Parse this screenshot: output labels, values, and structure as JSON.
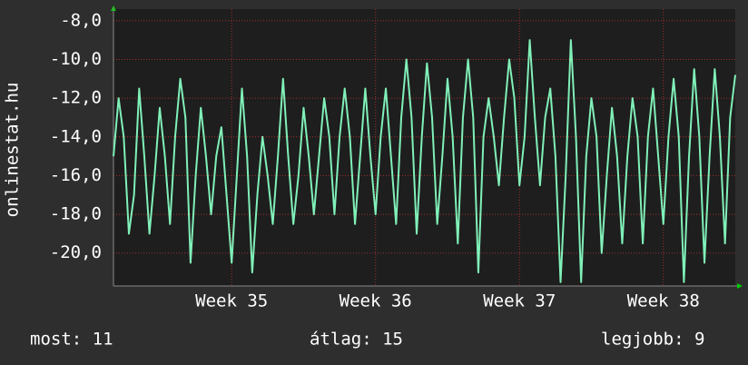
{
  "chart_data": {
    "type": "line",
    "y_label": "onlinestat.hu",
    "footer": [
      "most: 11",
      "átlag: 15",
      "legjobb: 9"
    ],
    "color": "#80f0b8",
    "grid": true,
    "ylim": [
      -21.7,
      -7.4
    ],
    "yticks": [
      {
        "value": -8,
        "label": "-8,0"
      },
      {
        "value": -10,
        "label": "-10,0"
      },
      {
        "value": -12,
        "label": "-12,0"
      },
      {
        "value": -14,
        "label": "-14,0"
      },
      {
        "value": -16,
        "label": "-16,0"
      },
      {
        "value": -18,
        "label": "-18,0"
      },
      {
        "value": -20,
        "label": "-20,0"
      }
    ],
    "xlim": [
      0,
      121
    ],
    "xticks": [
      {
        "value": 23,
        "label": "Week 35"
      },
      {
        "value": 51,
        "label": "Week 36"
      },
      {
        "value": 79,
        "label": "Week 37"
      },
      {
        "value": 107,
        "label": "Week 38"
      }
    ],
    "values": [
      -15,
      -12,
      -14,
      -19,
      -17,
      -11.5,
      -15,
      -19,
      -16,
      -12.5,
      -15,
      -18.5,
      -14,
      -11,
      -13,
      -20.5,
      -16,
      -12.5,
      -15,
      -18,
      -15,
      -13.5,
      -17,
      -20.5,
      -16,
      -11.5,
      -15,
      -21,
      -17,
      -14,
      -16,
      -18.5,
      -15,
      -11,
      -15,
      -18.5,
      -16,
      -12.5,
      -15,
      -18,
      -15,
      -12,
      -14,
      -18,
      -14,
      -11.5,
      -14,
      -18.5,
      -15,
      -11.5,
      -15,
      -18,
      -14,
      -11.5,
      -15,
      -18.5,
      -13,
      -10,
      -13,
      -19,
      -14,
      -10.2,
      -13,
      -18.5,
      -15,
      -11,
      -14,
      -19.5,
      -13,
      -10,
      -13,
      -21,
      -14,
      -12,
      -14,
      -16.5,
      -13,
      -10,
      -12,
      -16.5,
      -14,
      -9,
      -13,
      -16.5,
      -13,
      -11.5,
      -15,
      -21.5,
      -16,
      -9,
      -14,
      -21.5,
      -15,
      -12,
      -14,
      -20,
      -16,
      -12.5,
      -15,
      -19.5,
      -15,
      -12,
      -14,
      -19.5,
      -14,
      -11.5,
      -15,
      -18.5,
      -14,
      -11,
      -14,
      -21.5,
      -15,
      -10.5,
      -14,
      -20.5,
      -15,
      -10.5,
      -14,
      -19.5,
      -13,
      -10.8
    ]
  }
}
